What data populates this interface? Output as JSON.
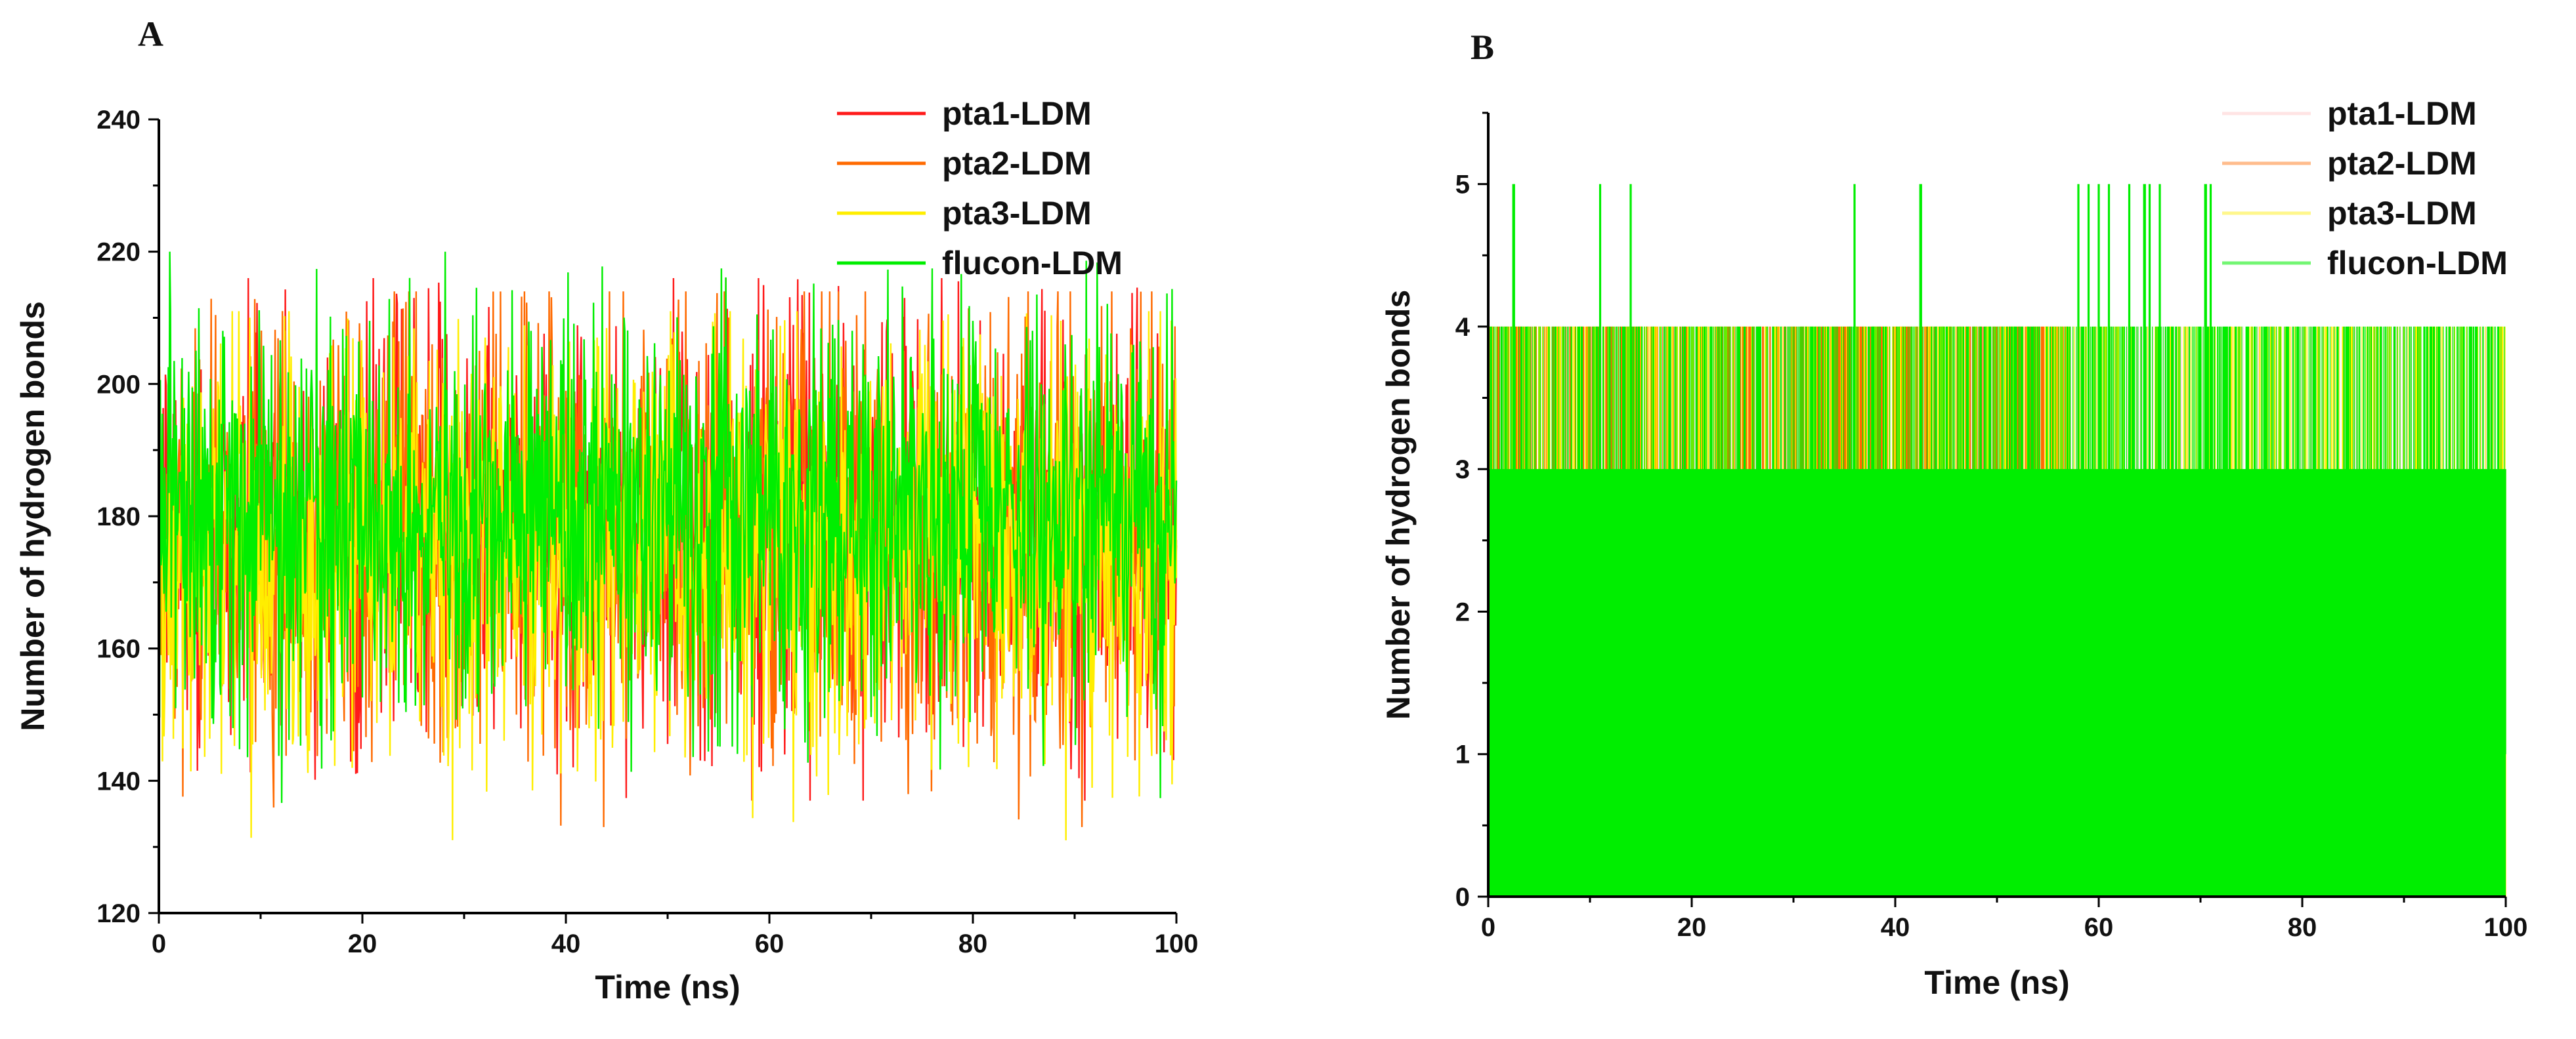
{
  "chart_data": [
    {
      "panel": "A",
      "type": "line",
      "xlabel": "Time (ns)",
      "ylabel": "Number of hydrogen bonds",
      "xlim": [
        0,
        100
      ],
      "ylim": [
        120,
        240
      ],
      "xticks": [
        0,
        20,
        40,
        60,
        80,
        100
      ],
      "yticks": [
        120,
        140,
        160,
        180,
        200,
        220,
        240
      ],
      "grid": false,
      "legend_position": "top-right",
      "series": [
        {
          "name": "pta1-LDM",
          "color": "#ff1a1a",
          "mean": 178,
          "range": [
            137,
            216
          ],
          "band": [
            152,
            204
          ]
        },
        {
          "name": "pta2-LDM",
          "color": "#ff6a00",
          "mean": 178,
          "range": [
            133,
            214
          ],
          "band": [
            150,
            205
          ]
        },
        {
          "name": "pta3-LDM",
          "color": "#ffee00",
          "mean": 176,
          "range": [
            131,
            211
          ],
          "band": [
            149,
            203
          ]
        },
        {
          "name": "flucon-LDM",
          "color": "#00ee00",
          "mean": 180,
          "range": [
            133,
            220
          ],
          "band": [
            155,
            205
          ]
        }
      ]
    },
    {
      "panel": "B",
      "type": "line",
      "xlabel": "Time (ns)",
      "ylabel": "Number of hydrogen bonds",
      "xlim": [
        0,
        100
      ],
      "ylim": [
        0,
        5.5
      ],
      "xticks": [
        0,
        20,
        40,
        60,
        80,
        100
      ],
      "yticks": [
        0,
        1,
        2,
        3,
        4,
        5
      ],
      "grid": false,
      "legend_position": "top-right",
      "series": [
        {
          "name": "pta1-LDM",
          "color": "#ffb3b3",
          "typical_range": [
            0,
            4
          ],
          "max": 4
        },
        {
          "name": "pta2-LDM",
          "color": "#ff6a00",
          "typical_range": [
            0,
            4
          ],
          "max": 4
        },
        {
          "name": "pta3-LDM",
          "color": "#ffee00",
          "typical_range": [
            0,
            4
          ],
          "max": 4
        },
        {
          "name": "flucon-LDM",
          "color": "#00ee00",
          "typical_range": [
            0,
            4
          ],
          "max": 5,
          "spike_times": [
            2.5,
            11,
            14,
            36,
            42.5,
            58,
            59,
            60,
            61,
            63,
            64.5,
            65,
            66,
            70.5,
            71
          ]
        }
      ]
    }
  ]
}
